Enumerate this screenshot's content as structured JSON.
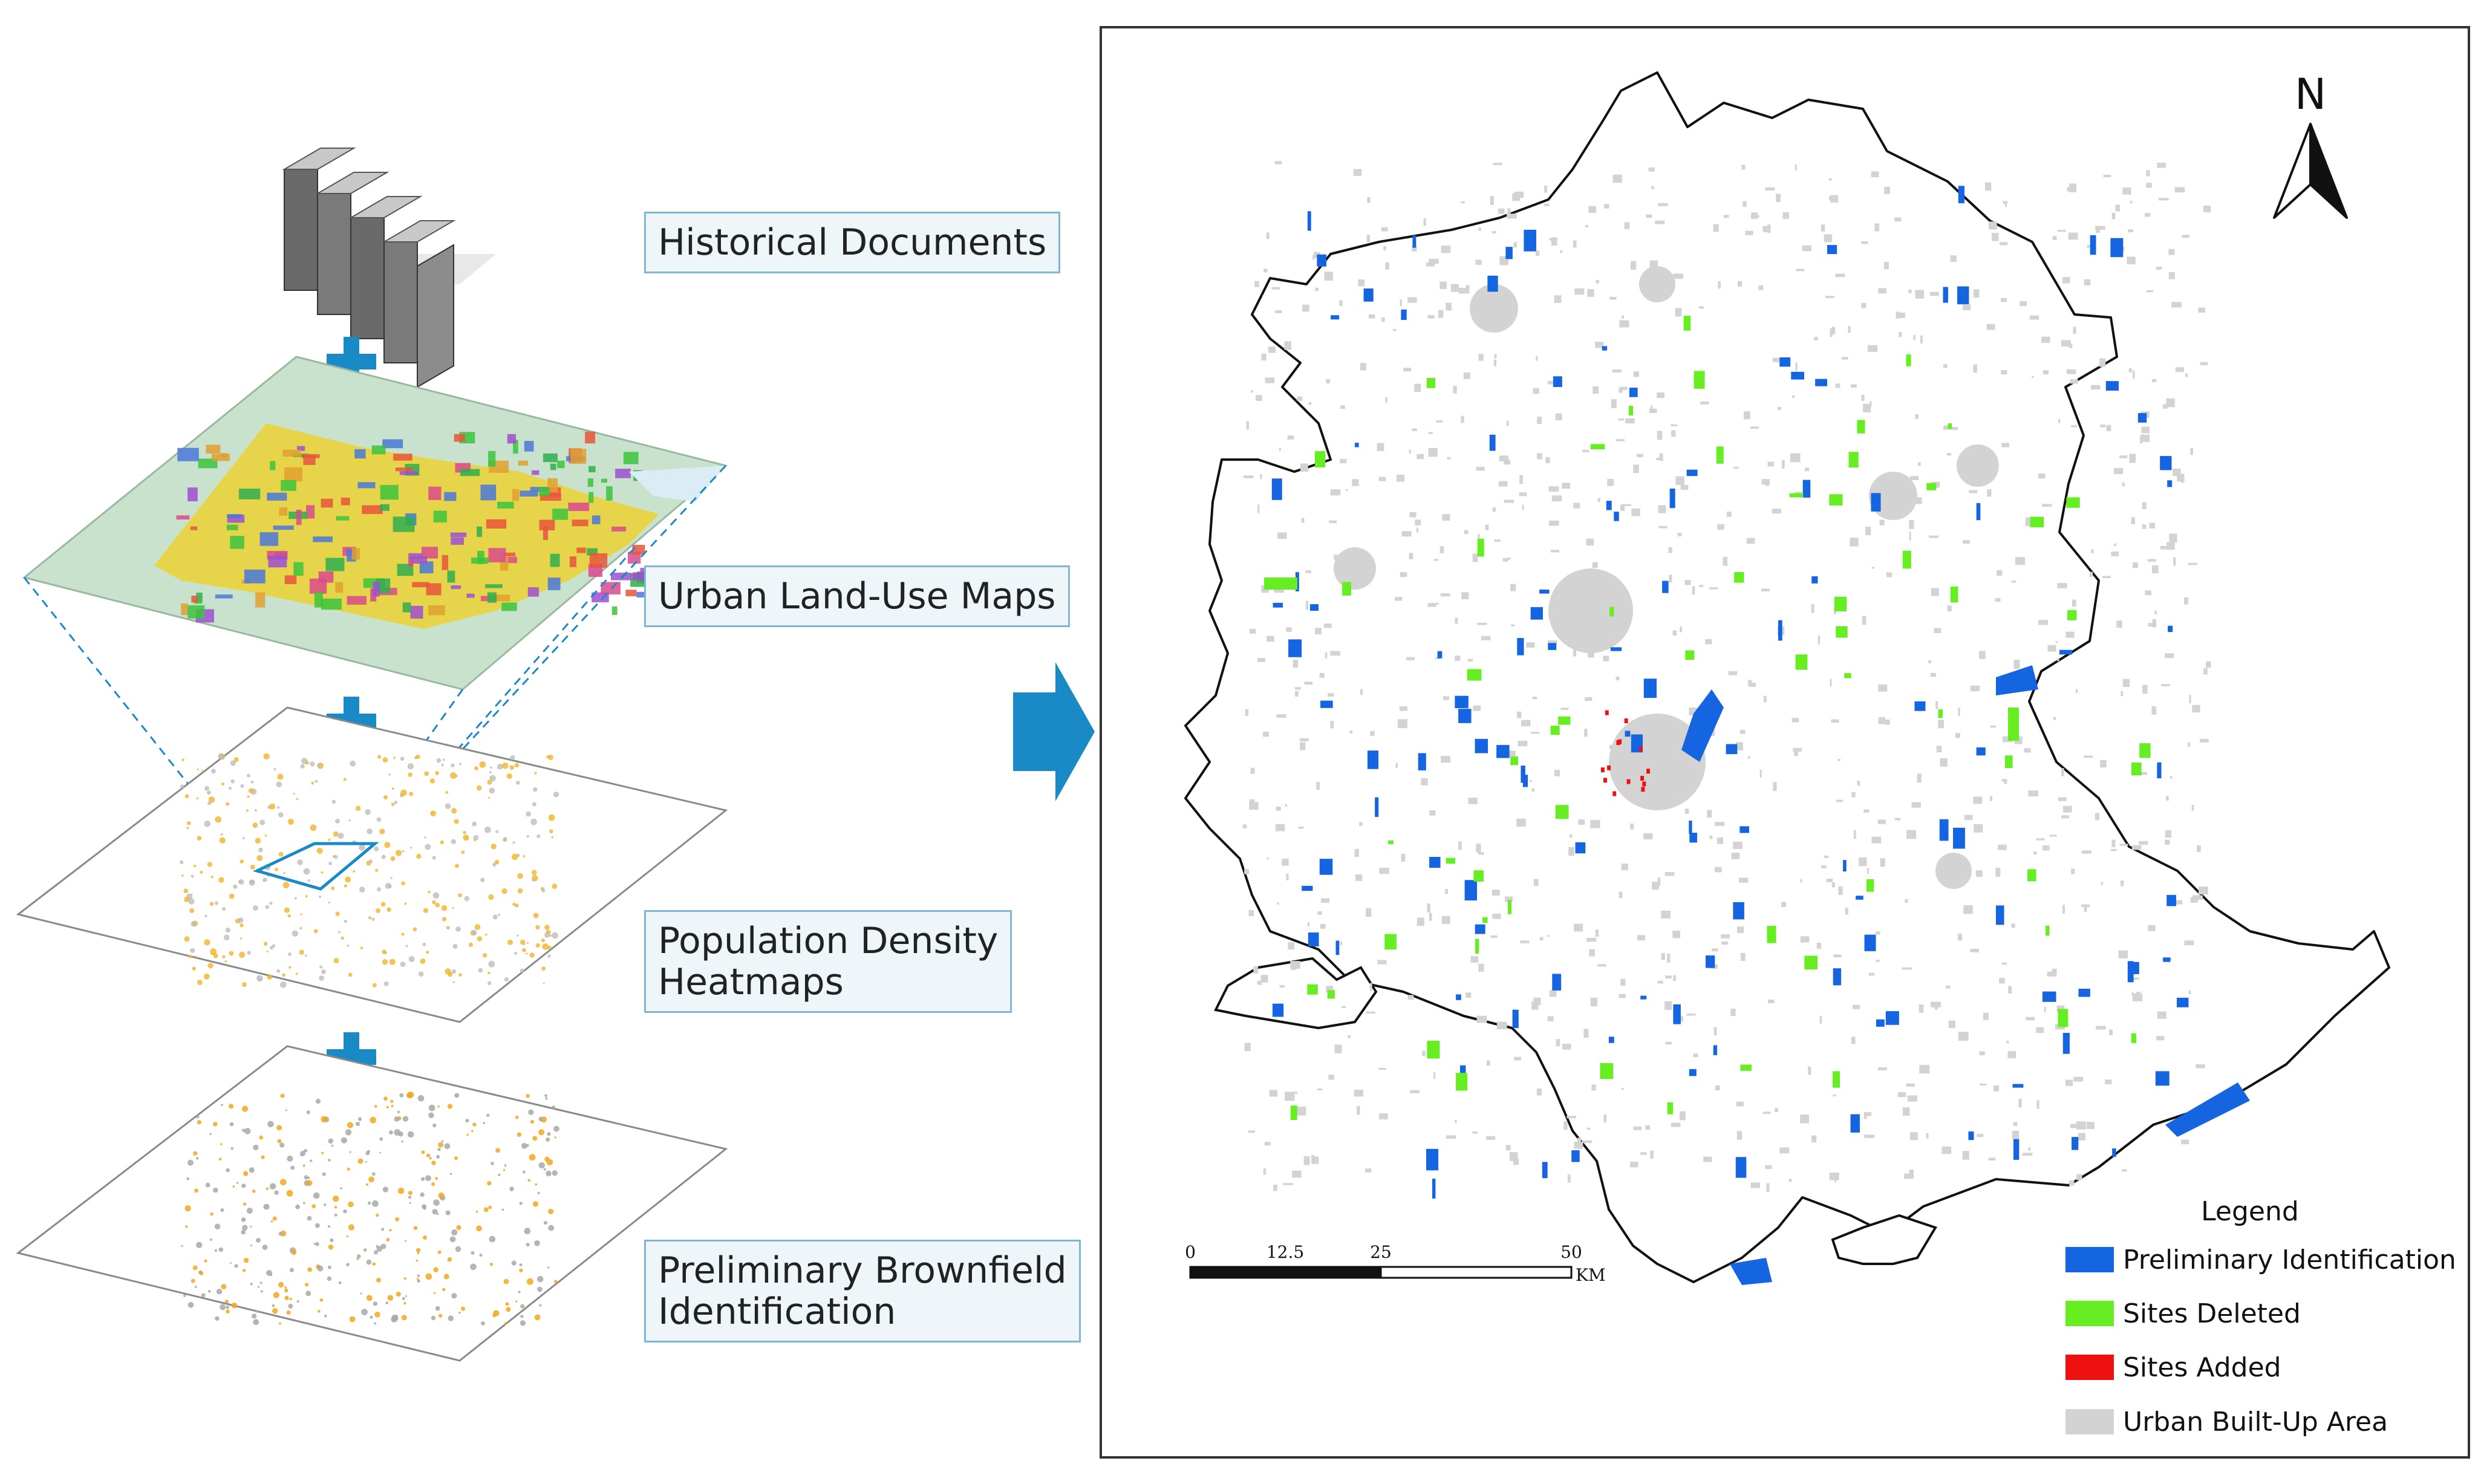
{
  "workflow": {
    "steps": [
      {
        "lines": [
          "Historical Documents"
        ]
      },
      {
        "lines": [
          "Urban Land-Use Maps"
        ]
      },
      {
        "lines": [
          "Population Density",
          "Heatmaps"
        ]
      },
      {
        "lines": [
          "Preliminary Brownfield",
          "Identification"
        ]
      }
    ],
    "combine_symbol": "+"
  },
  "map": {
    "north_label": "N",
    "scale_bar": {
      "ticks": [
        "0",
        "12.5",
        "25",
        "50"
      ],
      "unit": "KM"
    },
    "legend": {
      "title": "Legend",
      "items": [
        {
          "label": "Preliminary Identification",
          "color": "#1565e0"
        },
        {
          "label": "Sites Deleted",
          "color": "#66ee22"
        },
        {
          "label": "Sites Added",
          "color": "#ee1111"
        },
        {
          "label": "Urban Built-Up Area",
          "color": "#d3d3d3"
        }
      ]
    }
  },
  "colors": {
    "accent": "#1a8ac6",
    "outline": "#111111",
    "landuse_base": "#c8e2cc",
    "heat": "#f1b42a"
  }
}
